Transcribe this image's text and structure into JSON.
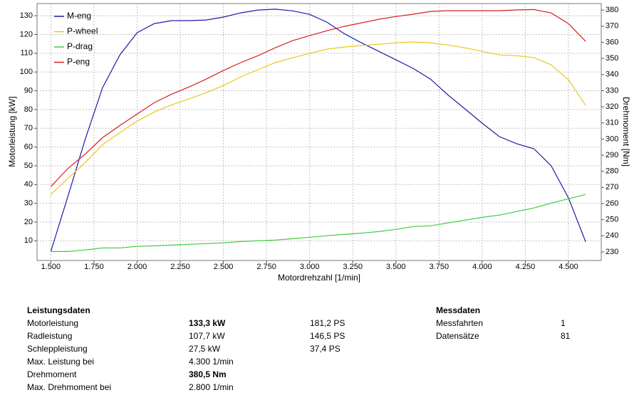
{
  "chart_data": {
    "type": "line",
    "x_label": "Motordrehzahl  [1/min]",
    "y_label": "Motorleistung [kW]",
    "y2_label": "Drehmoment [Nm]",
    "x": [
      1500,
      1600,
      1700,
      1800,
      1900,
      2000,
      2100,
      2200,
      2300,
      2400,
      2500,
      2600,
      2700,
      2800,
      2900,
      3000,
      3100,
      3200,
      3300,
      3400,
      3500,
      3600,
      3700,
      3800,
      3900,
      4000,
      4100,
      4200,
      4300,
      4400,
      4500,
      4600
    ],
    "series": [
      {
        "name": "M-eng",
        "color": "#1c1ca8",
        "axis": "y2",
        "values": [
          230.4,
          264.8,
          300.1,
          331.9,
          352.2,
          365.9,
          371.6,
          373.4,
          373.4,
          373.8,
          375.6,
          378.2,
          380,
          380.5,
          379.5,
          377.3,
          372.5,
          365.4,
          359.7,
          354.4,
          349.1,
          343.8,
          337.2,
          327.5,
          318.7,
          309.8,
          301.5,
          297.1,
          294,
          283.4,
          263.5,
          236.2
        ]
      },
      {
        "name": "P-wheel",
        "color": "#e8c81e",
        "values": [
          34.7,
          43.4,
          51.8,
          61.3,
          67.7,
          73.8,
          78.7,
          82.5,
          85.6,
          89,
          92.8,
          97.4,
          101.2,
          105,
          107.6,
          109.9,
          112.2,
          113.3,
          114.1,
          114.8,
          115.6,
          116,
          115.6,
          114.4,
          112.9,
          111,
          109.1,
          108.7,
          107.7,
          103.8,
          95.8,
          82.2
        ]
      },
      {
        "name": "P-drag",
        "color": "#3ccc3c",
        "values": [
          4.3,
          4.3,
          5.1,
          6.2,
          6.2,
          7,
          7.3,
          7.7,
          8.1,
          8.5,
          8.9,
          9.6,
          10,
          10.4,
          11.1,
          11.9,
          12.7,
          13.4,
          14.1,
          14.9,
          16.1,
          17.6,
          18,
          19.5,
          21,
          22.5,
          23.7,
          25.6,
          27.5,
          30.1,
          32.4,
          34.7
        ]
      },
      {
        "name": "P-eng",
        "color": "#d42020",
        "values": [
          38.9,
          48.7,
          56.3,
          65,
          71.5,
          77.6,
          83.7,
          88.2,
          92,
          96.2,
          100.8,
          105,
          108.7,
          112.9,
          116.7,
          119.4,
          122,
          124.3,
          126.2,
          128.1,
          129.6,
          130.8,
          132.3,
          132.7,
          132.7,
          132.7,
          132.7,
          133.1,
          133.3,
          131.5,
          125.8,
          116.3
        ]
      }
    ],
    "xlim": [
      1420,
      4690
    ],
    "xticks": [
      {
        "value": 1500,
        "label": "1.500"
      },
      {
        "value": 1750,
        "label": "1.750"
      },
      {
        "value": 2000,
        "label": "2.000"
      },
      {
        "value": 2250,
        "label": "2.250"
      },
      {
        "value": 2500,
        "label": "2.500"
      },
      {
        "value": 2750,
        "label": "2.750"
      },
      {
        "value": 3000,
        "label": "3.000"
      },
      {
        "value": 3250,
        "label": "3.250"
      },
      {
        "value": 3500,
        "label": "3.500"
      },
      {
        "value": 3750,
        "label": "3.750"
      },
      {
        "value": 4000,
        "label": "4.000"
      },
      {
        "value": 4250,
        "label": "4.250"
      },
      {
        "value": 4500,
        "label": "4.500"
      }
    ],
    "ylim": [
      -0.5,
      136.5
    ],
    "yticks": [
      10,
      20,
      30,
      40,
      50,
      60,
      70,
      80,
      90,
      100,
      110,
      120,
      130
    ],
    "y2lim": [
      224.7,
      384
    ],
    "y2ticks": [
      230,
      240,
      250,
      260,
      270,
      280,
      290,
      300,
      310,
      320,
      330,
      340,
      350,
      360,
      370,
      380
    ],
    "grid": true,
    "legend": "top-left"
  },
  "tables": {
    "leistungsdaten": {
      "title": "Leistungsdaten",
      "rows": [
        [
          "Motorleistung",
          "133,3 kW",
          "181,2 PS"
        ],
        [
          "Radleistung",
          "107,7 kW",
          "146,5 PS"
        ],
        [
          "Schleppleistung",
          "27,5 kW",
          "37,4 PS"
        ],
        [
          "Max. Leistung bei",
          "4.300 1/min"
        ],
        [
          "Drehmoment",
          "380,5 Nm"
        ],
        [
          "Max. Drehmoment bei",
          "2.800 1/min"
        ]
      ]
    },
    "messdaten": {
      "title": "Messdaten",
      "rows": [
        [
          "Messfahrten",
          "1"
        ],
        [
          "Datensätze",
          "81"
        ]
      ]
    }
  }
}
